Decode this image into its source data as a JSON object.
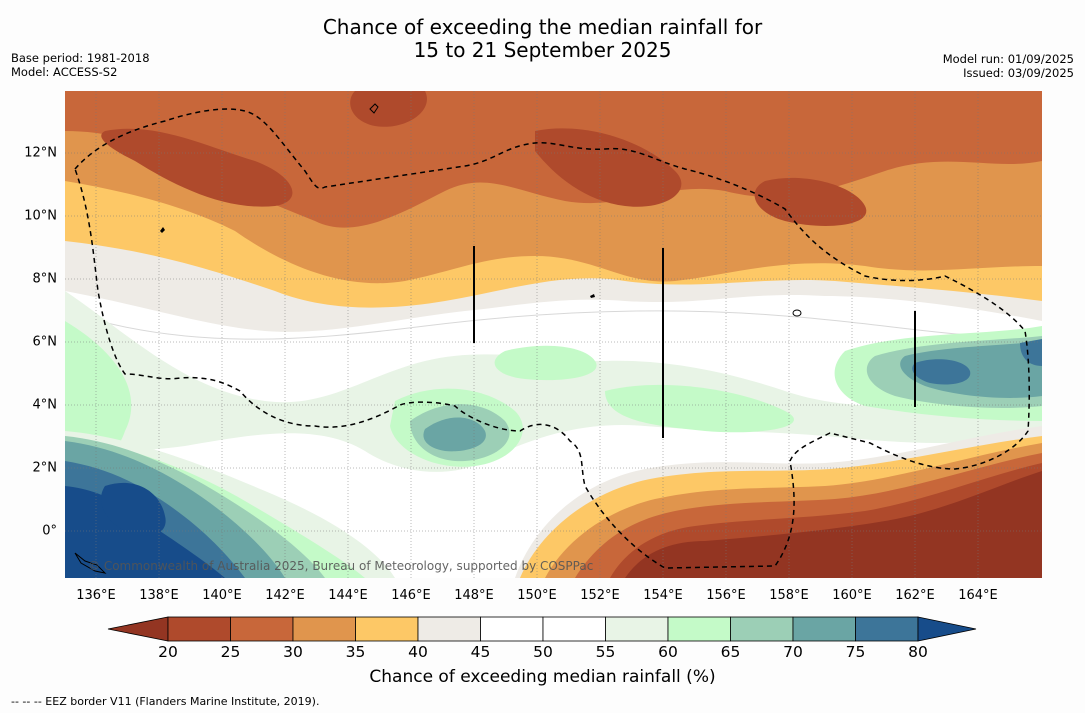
{
  "header": {
    "title_line1": "Chance of exceeding the median rainfall for",
    "title_line2": "15 to 21 September 2025",
    "base_period": "Base period: 1981-2018",
    "model": "Model: ACCESS-S2",
    "model_run": "Model run: 01/09/2025",
    "issued": "Issued: 03/09/2025"
  },
  "map": {
    "lon_labels": [
      "136°E",
      "138°E",
      "140°E",
      "142°E",
      "144°E",
      "146°E",
      "148°E",
      "150°E",
      "152°E",
      "154°E",
      "156°E",
      "158°E",
      "160°E",
      "162°E",
      "164°E"
    ],
    "lat_labels": [
      "12°N",
      "10°N",
      "8°N",
      "6°N",
      "4°N",
      "2°N",
      "0°"
    ],
    "copyright": "© Commonwealth of Australia 2025, Bureau of Meteorology, supported by COSPPac",
    "colors": {
      "c15_20": "#933522",
      "c20_25": "#af4a2c",
      "c25_30": "#c8673a",
      "c30_35": "#e0954d",
      "c35_40": "#fdc866",
      "c40_45": "#eeebe6",
      "c45_55": "#ffffff",
      "c55_60": "#e8f4e6",
      "c60_65": "#c4fac8",
      "c65_70": "#9ccfb6",
      "c70_75": "#6aa5a4",
      "c75_80": "#3d7599",
      "c80_85": "#174c8a"
    }
  },
  "colorbar": {
    "title": "Chance of exceeding median rainfall (%)",
    "ticks": [
      "20",
      "25",
      "30",
      "35",
      "40",
      "45",
      "50",
      "55",
      "60",
      "65",
      "70",
      "75",
      "80"
    ],
    "colors": [
      "#933522",
      "#af4a2c",
      "#c8673a",
      "#e0954d",
      "#fdc866",
      "#eeebe6",
      "#ffffff",
      "#ffffff",
      "#e8f4e6",
      "#c4fac8",
      "#9ccfb6",
      "#6aa5a4",
      "#3d7599",
      "#174c8a"
    ]
  },
  "footnote": "-- -- -- EEZ border V11 (Flanders Marine Institute, 2019)."
}
